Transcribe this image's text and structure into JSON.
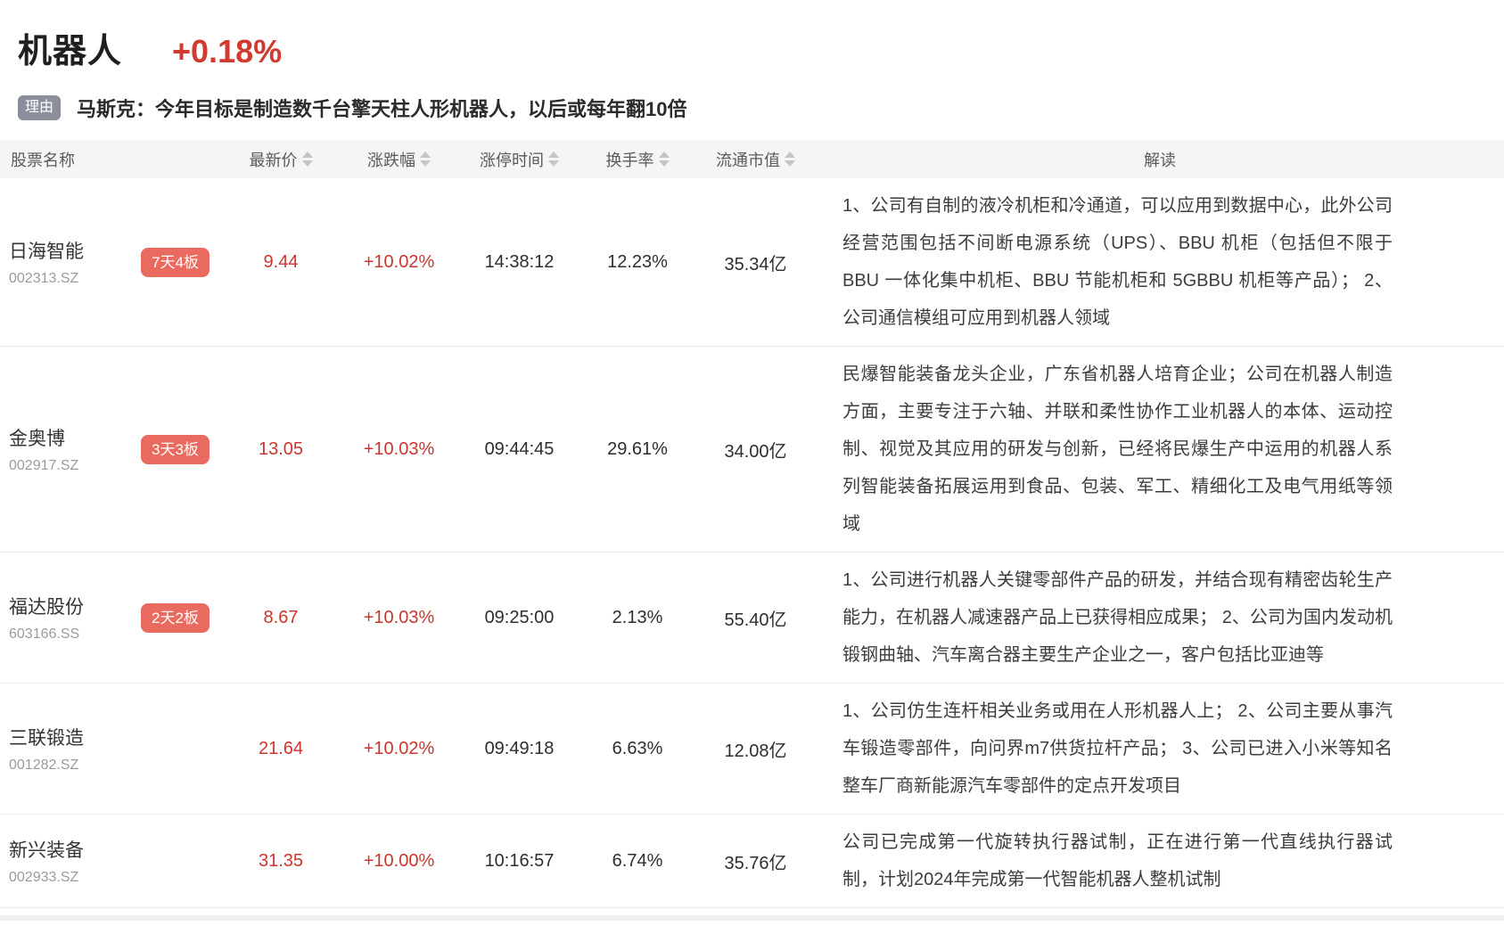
{
  "section": {
    "title": "机器人",
    "change": "+0.18%",
    "reason_badge": "理由",
    "reason": "马斯克：今年目标是制造数千台擎天柱人形机器人，以后或每年翻10倍"
  },
  "table": {
    "headers": {
      "name": "股票名称",
      "price": "最新价",
      "change": "涨跌幅",
      "limit_time": "涨停时间",
      "turnover": "换手率",
      "market_cap": "流通市值",
      "analysis": "解读"
    },
    "rows": [
      {
        "name": "日海智能",
        "code": "002313.SZ",
        "badge": "7天4板",
        "price": "9.44",
        "change": "+10.02%",
        "limit_time": "14:38:12",
        "turnover": "12.23%",
        "market_cap": "35.34亿",
        "analysis": "1、公司有自制的液冷机柜和冷通道，可以应用到数据中心，此外公司经营范围包括不间断电源系统（UPS）、BBU 机柜（包括但不限于 BBU 一体化集中机柜、BBU 节能机柜和 5GBBU 机柜等产品）； 2、公司通信模组可应用到机器人领域"
      },
      {
        "name": "金奥博",
        "code": "002917.SZ",
        "badge": "3天3板",
        "price": "13.05",
        "change": "+10.03%",
        "limit_time": "09:44:45",
        "turnover": "29.61%",
        "market_cap": "34.00亿",
        "analysis": "民爆智能装备龙头企业，广东省机器人培育企业；公司在机器人制造方面，主要专注于六轴、并联和柔性协作工业机器人的本体、运动控制、视觉及其应用的研发与创新，已经将民爆生产中运用的机器人系列智能装备拓展运用到食品、包装、军工、精细化工及电气用纸等领域"
      },
      {
        "name": "福达股份",
        "code": "603166.SS",
        "badge": "2天2板",
        "price": "8.67",
        "change": "+10.03%",
        "limit_time": "09:25:00",
        "turnover": "2.13%",
        "market_cap": "55.40亿",
        "analysis": "1、公司进行机器人关键零部件产品的研发，并结合现有精密齿轮生产能力，在机器人减速器产品上已获得相应成果； 2、公司为国内发动机锻钢曲轴、汽车离合器主要生产企业之一，客户包括比亚迪等"
      },
      {
        "name": "三联锻造",
        "code": "001282.SZ",
        "badge": "",
        "price": "21.64",
        "change": "+10.02%",
        "limit_time": "09:49:18",
        "turnover": "6.63%",
        "market_cap": "12.08亿",
        "analysis": "1、公司仿生连杆相关业务或用在人形机器人上； 2、公司主要从事汽车锻造零部件，向问界m7供货拉杆产品； 3、公司已进入小米等知名整车厂商新能源汽车零部件的定点开发项目"
      },
      {
        "name": "新兴装备",
        "code": "002933.SZ",
        "badge": "",
        "price": "31.35",
        "change": "+10.00%",
        "limit_time": "10:16:57",
        "turnover": "6.74%",
        "market_cap": "35.76亿",
        "analysis": "公司已完成第一代旋转执行器试制，正在进行第一代直线执行器试制，计划2024年完成第一代智能机器人整机试制"
      }
    ]
  },
  "colors": {
    "up_red": "#cc342e",
    "badge_red": "#e96a5e",
    "badge_gray": "#8a8f9b",
    "header_bg": "#f5f5f6"
  }
}
